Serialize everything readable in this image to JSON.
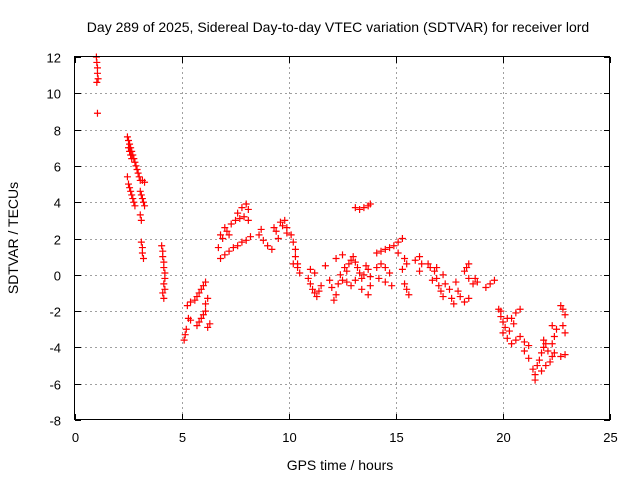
{
  "chart_data": {
    "type": "scatter",
    "title": "Day 289 of 2025, Sidereal Day-to-day VTEC variation (SDTVAR) for receiver lord",
    "xlabel": "GPS time / hours",
    "ylabel": "SDTVAR / TECUs",
    "xlim": [
      0,
      25
    ],
    "ylim": [
      -8,
      12
    ],
    "xticks": [
      0,
      5,
      10,
      15,
      20,
      25
    ],
    "yticks": [
      -8,
      -6,
      -4,
      -2,
      0,
      2,
      4,
      6,
      8,
      10,
      12
    ],
    "grid": true,
    "marker": "+",
    "color": "#ff0000",
    "series": [
      {
        "name": "SDTVAR",
        "points": [
          [
            1.0,
            12.0
          ],
          [
            1.02,
            11.7
          ],
          [
            1.05,
            11.4
          ],
          [
            1.05,
            11.1
          ],
          [
            1.08,
            10.8
          ],
          [
            1.02,
            10.6
          ],
          [
            1.05,
            8.9
          ],
          [
            2.45,
            7.6
          ],
          [
            2.5,
            7.4
          ],
          [
            2.55,
            7.2
          ],
          [
            2.6,
            7.0
          ],
          [
            2.65,
            6.8
          ],
          [
            2.7,
            6.6
          ],
          [
            2.75,
            6.4
          ],
          [
            2.8,
            6.2
          ],
          [
            2.85,
            6.0
          ],
          [
            2.9,
            5.8
          ],
          [
            2.95,
            5.6
          ],
          [
            3.0,
            5.4
          ],
          [
            2.5,
            7.0
          ],
          [
            2.55,
            6.8
          ],
          [
            2.6,
            6.6
          ],
          [
            2.65,
            6.4
          ],
          [
            2.45,
            5.4
          ],
          [
            2.5,
            5.0
          ],
          [
            2.55,
            4.8
          ],
          [
            2.6,
            4.6
          ],
          [
            2.65,
            4.4
          ],
          [
            2.7,
            4.2
          ],
          [
            2.75,
            4.0
          ],
          [
            2.8,
            3.8
          ],
          [
            3.05,
            5.2
          ],
          [
            3.15,
            5.2
          ],
          [
            3.25,
            5.1
          ],
          [
            3.05,
            4.6
          ],
          [
            3.1,
            4.4
          ],
          [
            3.15,
            4.2
          ],
          [
            3.2,
            4.0
          ],
          [
            3.25,
            3.8
          ],
          [
            3.05,
            3.3
          ],
          [
            3.1,
            3.0
          ],
          [
            3.1,
            1.8
          ],
          [
            3.15,
            1.5
          ],
          [
            3.15,
            1.2
          ],
          [
            3.2,
            0.9
          ],
          [
            4.05,
            1.6
          ],
          [
            4.1,
            1.3
          ],
          [
            4.1,
            1.0
          ],
          [
            4.15,
            0.7
          ],
          [
            4.15,
            0.4
          ],
          [
            4.2,
            0.1
          ],
          [
            4.2,
            -0.2
          ],
          [
            4.15,
            -0.5
          ],
          [
            4.2,
            -0.8
          ],
          [
            4.1,
            -1.0
          ],
          [
            4.15,
            -1.3
          ],
          [
            5.1,
            -3.6
          ],
          [
            5.15,
            -3.3
          ],
          [
            5.2,
            -3.0
          ],
          [
            5.3,
            -2.4
          ],
          [
            5.4,
            -2.5
          ],
          [
            5.25,
            -1.7
          ],
          [
            5.4,
            -1.5
          ],
          [
            5.6,
            -1.4
          ],
          [
            5.7,
            -1.2
          ],
          [
            5.8,
            -1.0
          ],
          [
            5.9,
            -0.8
          ],
          [
            6.0,
            -0.6
          ],
          [
            6.1,
            -0.4
          ],
          [
            6.1,
            -1.6
          ],
          [
            6.2,
            -1.3
          ],
          [
            5.7,
            -2.8
          ],
          [
            5.8,
            -2.6
          ],
          [
            5.9,
            -2.4
          ],
          [
            6.0,
            -2.2
          ],
          [
            6.1,
            -2.0
          ],
          [
            6.2,
            -2.9
          ],
          [
            6.3,
            -2.7
          ],
          [
            6.7,
            1.5
          ],
          [
            6.9,
            2.0
          ],
          [
            7.1,
            2.4
          ],
          [
            7.3,
            2.8
          ],
          [
            7.5,
            3.0
          ],
          [
            7.7,
            3.1
          ],
          [
            7.9,
            3.2
          ],
          [
            8.1,
            3.0
          ],
          [
            6.8,
            2.2
          ],
          [
            7.0,
            2.6
          ],
          [
            7.2,
            2.2
          ],
          [
            7.6,
            3.4
          ],
          [
            7.8,
            3.7
          ],
          [
            8.0,
            3.9
          ],
          [
            8.1,
            3.6
          ],
          [
            6.8,
            0.9
          ],
          [
            7.0,
            1.1
          ],
          [
            7.2,
            1.3
          ],
          [
            7.4,
            1.5
          ],
          [
            7.6,
            1.6
          ],
          [
            7.8,
            1.8
          ],
          [
            8.0,
            1.9
          ],
          [
            8.2,
            2.1
          ],
          [
            8.6,
            2.2
          ],
          [
            8.7,
            2.5
          ],
          [
            8.8,
            1.9
          ],
          [
            9.0,
            1.6
          ],
          [
            9.2,
            1.4
          ],
          [
            9.3,
            2.6
          ],
          [
            9.4,
            2.4
          ],
          [
            9.5,
            2.0
          ],
          [
            9.6,
            2.9
          ],
          [
            9.7,
            2.7
          ],
          [
            9.8,
            3.0
          ],
          [
            9.9,
            2.6
          ],
          [
            9.9,
            2.3
          ],
          [
            10.1,
            2.2
          ],
          [
            10.2,
            1.8
          ],
          [
            10.3,
            1.4
          ],
          [
            10.3,
            1.0
          ],
          [
            10.4,
            0.6
          ],
          [
            10.4,
            0.4
          ],
          [
            10.5,
            0.1
          ],
          [
            10.2,
            0.6
          ],
          [
            10.9,
            -0.2
          ],
          [
            11.0,
            -0.5
          ],
          [
            11.1,
            -0.8
          ],
          [
            11.2,
            -1.0
          ],
          [
            11.3,
            -1.2
          ],
          [
            11.4,
            -0.9
          ],
          [
            11.5,
            -0.6
          ],
          [
            11.0,
            0.3
          ],
          [
            11.2,
            0.1
          ],
          [
            11.7,
            0.5
          ],
          [
            11.9,
            -0.3
          ],
          [
            12.0,
            -0.7
          ],
          [
            12.1,
            -1.4
          ],
          [
            12.2,
            -1.1
          ],
          [
            12.3,
            -0.5
          ],
          [
            12.4,
            0.0
          ],
          [
            12.5,
            -0.3
          ],
          [
            12.6,
            0.4
          ],
          [
            12.7,
            0.2
          ],
          [
            12.8,
            0.6
          ],
          [
            12.9,
            0.8
          ],
          [
            13.0,
            1.0
          ],
          [
            13.1,
            0.7
          ],
          [
            13.2,
            0.4
          ],
          [
            13.3,
            0.1
          ],
          [
            13.4,
            -0.2
          ],
          [
            13.5,
            0.0
          ],
          [
            13.6,
            0.5
          ],
          [
            13.7,
            0.3
          ],
          [
            13.8,
            -0.1
          ],
          [
            12.7,
            -0.4
          ],
          [
            12.9,
            -0.6
          ],
          [
            13.1,
            -0.3
          ],
          [
            13.4,
            -0.8
          ],
          [
            13.7,
            -1.1
          ],
          [
            13.8,
            -0.6
          ],
          [
            12.2,
            0.9
          ],
          [
            12.5,
            1.1
          ],
          [
            13.1,
            3.7
          ],
          [
            13.3,
            3.6
          ],
          [
            13.5,
            3.7
          ],
          [
            13.7,
            3.8
          ],
          [
            13.8,
            3.9
          ],
          [
            14.1,
            0.4
          ],
          [
            14.3,
            0.6
          ],
          [
            14.5,
            0.4
          ],
          [
            14.7,
            0.1
          ],
          [
            14.2,
            -0.2
          ],
          [
            14.5,
            -0.4
          ],
          [
            14.8,
            -0.6
          ],
          [
            14.1,
            1.2
          ],
          [
            14.3,
            1.3
          ],
          [
            14.5,
            1.4
          ],
          [
            14.7,
            1.5
          ],
          [
            14.9,
            1.6
          ],
          [
            15.1,
            1.8
          ],
          [
            15.3,
            2.0
          ],
          [
            15.1,
            1.2
          ],
          [
            15.4,
            0.9
          ],
          [
            15.3,
            0.3
          ],
          [
            15.4,
            -0.5
          ],
          [
            15.5,
            -0.8
          ],
          [
            15.6,
            -1.1
          ],
          [
            15.5,
            0.6
          ],
          [
            15.9,
            0.8
          ],
          [
            16.1,
            1.0
          ],
          [
            16.2,
            0.6
          ],
          [
            16.1,
            0.2
          ],
          [
            16.5,
            0.6
          ],
          [
            16.6,
            0.4
          ],
          [
            16.8,
            0.2
          ],
          [
            16.9,
            -0.2
          ],
          [
            17.0,
            -0.6
          ],
          [
            17.1,
            -0.9
          ],
          [
            17.2,
            -1.2
          ],
          [
            17.3,
            -0.5
          ],
          [
            16.7,
            -0.3
          ],
          [
            16.9,
            0.4
          ],
          [
            17.2,
            0.0
          ],
          [
            17.5,
            -0.8
          ],
          [
            17.6,
            -1.3
          ],
          [
            17.7,
            -1.6
          ],
          [
            17.8,
            -0.4
          ],
          [
            17.9,
            -0.9
          ],
          [
            18.0,
            -1.2
          ],
          [
            18.2,
            -1.5
          ],
          [
            18.4,
            -1.3
          ],
          [
            18.2,
            0.2
          ],
          [
            18.3,
            0.4
          ],
          [
            18.4,
            -0.2
          ],
          [
            18.6,
            -0.5
          ],
          [
            18.7,
            -0.2
          ],
          [
            18.8,
            -0.4
          ],
          [
            18.4,
            0.6
          ],
          [
            19.2,
            -0.7
          ],
          [
            19.4,
            -0.5
          ],
          [
            19.6,
            -0.3
          ],
          [
            19.8,
            -1.9
          ],
          [
            19.9,
            -2.3
          ],
          [
            20.0,
            -2.6
          ],
          [
            20.1,
            -2.9
          ],
          [
            19.9,
            -2.0
          ],
          [
            20.2,
            -2.4
          ],
          [
            20.0,
            -3.2
          ],
          [
            20.2,
            -3.5
          ],
          [
            20.4,
            -3.8
          ],
          [
            20.6,
            -3.6
          ],
          [
            20.8,
            -3.4
          ],
          [
            21.0,
            -3.7
          ],
          [
            21.2,
            -3.9
          ],
          [
            20.3,
            -3.1
          ],
          [
            20.4,
            -2.4
          ],
          [
            20.6,
            -2.1
          ],
          [
            20.8,
            -1.9
          ],
          [
            20.5,
            -2.7
          ],
          [
            21.0,
            -4.2
          ],
          [
            21.2,
            -4.6
          ],
          [
            21.4,
            -5.2
          ],
          [
            21.5,
            -5.5
          ],
          [
            21.5,
            -5.8
          ],
          [
            21.6,
            -5.0
          ],
          [
            21.7,
            -4.7
          ],
          [
            21.8,
            -4.3
          ],
          [
            21.9,
            -4.0
          ],
          [
            22.0,
            -3.8
          ],
          [
            21.8,
            -5.3
          ],
          [
            22.0,
            -5.0
          ],
          [
            22.2,
            -4.8
          ],
          [
            22.3,
            -4.5
          ],
          [
            22.4,
            -4.3
          ],
          [
            22.3,
            -3.8
          ],
          [
            22.4,
            -3.4
          ],
          [
            22.5,
            -3.0
          ],
          [
            22.3,
            -2.8
          ],
          [
            22.1,
            -4.2
          ],
          [
            21.9,
            -3.6
          ],
          [
            22.7,
            -1.7
          ],
          [
            22.8,
            -1.9
          ],
          [
            22.9,
            -2.2
          ],
          [
            22.8,
            -2.8
          ],
          [
            22.9,
            -3.2
          ],
          [
            22.9,
            -4.4
          ],
          [
            22.7,
            -4.5
          ]
        ]
      }
    ]
  }
}
